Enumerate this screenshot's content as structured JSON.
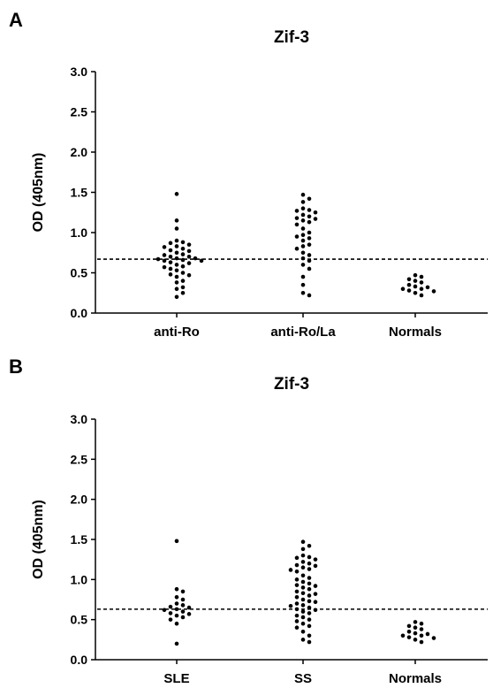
{
  "chart_data": [
    {
      "type": "strip",
      "panel_label": "A",
      "title": "Zif-3",
      "y_label": "OD (405nm)",
      "ylim": [
        0,
        3
      ],
      "yticks": [
        {
          "value": 0,
          "label": "0.0"
        },
        0.5,
        {
          "value": 1,
          "label": "1.0"
        },
        1.5,
        {
          "value": 2,
          "label": "2.0"
        },
        2.5,
        {
          "value": 3,
          "label": "3.0"
        }
      ],
      "reference_line": 0.67,
      "color": "#000000",
      "groups": [
        {
          "name": "anti-Ro",
          "values": [
            1.48,
            1.15,
            1.05,
            0.9,
            0.88,
            0.87,
            0.85,
            0.83,
            0.82,
            0.8,
            0.78,
            0.77,
            0.75,
            0.73,
            0.72,
            0.7,
            0.7,
            0.68,
            0.68,
            0.67,
            0.66,
            0.65,
            0.65,
            0.63,
            0.62,
            0.6,
            0.58,
            0.57,
            0.55,
            0.53,
            0.5,
            0.48,
            0.47,
            0.45,
            0.4,
            0.38,
            0.32,
            0.3,
            0.25,
            0.2
          ]
        },
        {
          "name": "anti-Ro/La",
          "values": [
            1.47,
            1.42,
            1.38,
            1.3,
            1.28,
            1.27,
            1.25,
            1.22,
            1.2,
            1.18,
            1.17,
            1.15,
            1.13,
            1.1,
            1.05,
            1.0,
            0.97,
            0.95,
            0.93,
            0.9,
            0.85,
            0.83,
            0.8,
            0.75,
            0.72,
            0.68,
            0.65,
            0.6,
            0.55,
            0.45,
            0.35,
            0.25,
            0.22
          ]
        },
        {
          "name": "Normals",
          "values": [
            0.47,
            0.45,
            0.42,
            0.4,
            0.38,
            0.35,
            0.33,
            0.32,
            0.3,
            0.3,
            0.28,
            0.27,
            0.25,
            0.22
          ]
        }
      ]
    },
    {
      "type": "strip",
      "panel_label": "B",
      "title": "Zif-3",
      "y_label": "OD (405nm)",
      "ylim": [
        0,
        3
      ],
      "yticks": [
        {
          "value": 0,
          "label": "0.0"
        },
        0.5,
        {
          "value": 1,
          "label": "1.0"
        },
        1.5,
        {
          "value": 2,
          "label": "2.0"
        },
        2.5,
        {
          "value": 3,
          "label": "3.0"
        }
      ],
      "reference_line": 0.63,
      "color": "#000000",
      "groups": [
        {
          "name": "SLE",
          "values": [
            1.48,
            0.88,
            0.85,
            0.78,
            0.75,
            0.7,
            0.68,
            0.66,
            0.65,
            0.63,
            0.62,
            0.6,
            0.58,
            0.57,
            0.55,
            0.53,
            0.5,
            0.45,
            0.2
          ]
        },
        {
          "name": "SS",
          "values": [
            1.47,
            1.42,
            1.38,
            1.3,
            1.28,
            1.27,
            1.25,
            1.22,
            1.2,
            1.18,
            1.17,
            1.15,
            1.13,
            1.12,
            1.1,
            1.05,
            1.02,
            1.0,
            0.97,
            0.95,
            0.93,
            0.92,
            0.9,
            0.88,
            0.85,
            0.83,
            0.82,
            0.8,
            0.78,
            0.75,
            0.73,
            0.72,
            0.7,
            0.68,
            0.67,
            0.65,
            0.63,
            0.62,
            0.6,
            0.58,
            0.55,
            0.53,
            0.5,
            0.48,
            0.45,
            0.42,
            0.4,
            0.35,
            0.3,
            0.25,
            0.22
          ]
        },
        {
          "name": "Normals",
          "values": [
            0.47,
            0.45,
            0.42,
            0.4,
            0.38,
            0.35,
            0.33,
            0.32,
            0.3,
            0.3,
            0.28,
            0.27,
            0.25,
            0.22
          ]
        }
      ]
    }
  ]
}
